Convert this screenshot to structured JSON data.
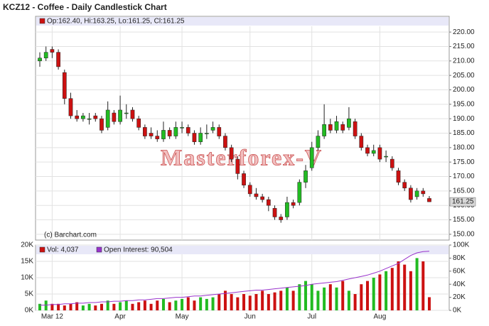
{
  "chart_data": [
    {
      "type": "candlestick",
      "title": "KCZ12 - Coffee - Daily Candlestick Chart",
      "legend": "Op:162.40, Hi:163.25, Lo:161.25, Cl:161.25",
      "watermark": "Masterforex-V",
      "credit": "(c) Barchart.com",
      "up_color": "#22bb22",
      "down_color": "#cc1111",
      "open": [
        210,
        211,
        214,
        213,
        206,
        197,
        191,
        190,
        190,
        191,
        190,
        187,
        192,
        189,
        192,
        193,
        190,
        187,
        185,
        184,
        183,
        186,
        184,
        187,
        187,
        185,
        182,
        185,
        186,
        187,
        184,
        180,
        176,
        171,
        167,
        164,
        163,
        162,
        159,
        156,
        156,
        161,
        161,
        168,
        173,
        180,
        184,
        188,
        186,
        188,
        187,
        189,
        184,
        180,
        178,
        180,
        177,
        176,
        172,
        168,
        166,
        163,
        165,
        162.4
      ],
      "high": [
        213,
        215,
        215,
        214,
        207,
        199,
        193,
        192,
        192,
        192,
        191,
        196,
        193,
        198,
        195,
        194,
        191,
        188,
        187,
        186,
        189,
        187,
        189,
        189,
        188,
        186,
        187,
        188,
        189,
        188,
        185,
        181,
        177,
        172,
        168,
        166,
        164,
        163,
        160,
        157,
        163,
        162,
        169,
        174,
        182,
        186,
        195,
        190,
        191,
        189,
        194,
        190,
        185,
        181,
        181,
        181,
        179,
        177,
        173,
        169,
        167,
        166,
        166,
        163.25
      ],
      "low": [
        208,
        210,
        211,
        207,
        195,
        190,
        189,
        189,
        188,
        189,
        185,
        186,
        188,
        188,
        190,
        189,
        186,
        183,
        183,
        182,
        182,
        183,
        183,
        185,
        184,
        181,
        181,
        183,
        185,
        183,
        179,
        175,
        169,
        166,
        163,
        162,
        161,
        158,
        155,
        154,
        155,
        159,
        160,
        166,
        172,
        179,
        183,
        185,
        185,
        185,
        186,
        183,
        179,
        177,
        177,
        175,
        175,
        172,
        167,
        165,
        161,
        162,
        163,
        161.25
      ],
      "close": [
        211,
        213,
        213,
        208,
        197,
        191,
        190,
        191,
        190,
        190,
        186,
        193,
        189,
        193,
        192,
        190,
        187,
        184,
        184,
        183,
        186,
        184,
        187,
        187,
        185,
        182,
        185,
        185,
        187,
        184,
        180,
        176,
        171,
        167,
        164,
        163,
        162,
        160,
        156,
        155,
        161,
        160,
        168,
        172,
        180,
        184,
        188,
        186,
        189,
        186,
        190,
        184,
        180,
        178,
        179,
        176,
        177,
        173,
        168,
        166,
        162,
        165,
        164,
        161.25
      ],
      "ylim": [
        148,
        222
      ],
      "yticks": [
        {
          "value": 150,
          "label": "150.00"
        },
        {
          "value": 155,
          "label": "155.00"
        },
        {
          "value": 160,
          "label": "160.00"
        },
        {
          "value": 165,
          "label": "165.00"
        },
        {
          "value": 170,
          "label": "170.00"
        },
        {
          "value": 175,
          "label": "175.00"
        },
        {
          "value": 180,
          "label": "180.00"
        },
        {
          "value": 185,
          "label": "185.00"
        },
        {
          "value": 190,
          "label": "190.00"
        },
        {
          "value": 195,
          "label": "195.00"
        },
        {
          "value": 200,
          "label": "200.00"
        },
        {
          "value": 205,
          "label": "205.00"
        },
        {
          "value": 210,
          "label": "210.00"
        },
        {
          "value": 215,
          "label": "215.00"
        },
        {
          "value": 220,
          "label": "220.00"
        }
      ],
      "grid": true
    },
    {
      "type": "bar",
      "categories": [
        null,
        null,
        "Mar 12",
        null,
        null,
        null,
        null,
        null,
        null,
        null,
        null,
        null,
        null,
        "Apr",
        null,
        null,
        null,
        null,
        null,
        null,
        null,
        null,
        null,
        "May",
        null,
        null,
        null,
        null,
        null,
        null,
        null,
        null,
        null,
        null,
        "Jun",
        null,
        null,
        null,
        null,
        null,
        null,
        null,
        null,
        null,
        "Jul",
        null,
        null,
        null,
        null,
        null,
        null,
        null,
        null,
        null,
        null,
        "Aug",
        null,
        null,
        null,
        null,
        null,
        null,
        null,
        null
      ],
      "series": [
        {
          "name": "Vol: 4,037",
          "color": "#cc1111",
          "values": [
            2000,
            3000,
            2000,
            2000,
            1500,
            2000,
            2500,
            1500,
            2000,
            1500,
            2000,
            3000,
            2000,
            2500,
            3000,
            2000,
            2500,
            3000,
            2000,
            3000,
            3500,
            2500,
            3000,
            3500,
            4000,
            3000,
            4000,
            3500,
            4000,
            5000,
            6000,
            5000,
            4000,
            5000,
            4500,
            5000,
            6000,
            5000,
            5500,
            6000,
            7000,
            6000,
            8000,
            9000,
            8000,
            6000,
            7000,
            8000,
            7000,
            9000,
            6000,
            5000,
            8000,
            9000,
            10000,
            11000,
            12000,
            13000,
            15000,
            14000,
            12000,
            16000,
            15000,
            4037
          ]
        },
        {
          "name": "Open Interest: 90,504",
          "color": "#9933cc",
          "axis": "y2",
          "values": [
            8000,
            8000,
            9000,
            9000,
            10000,
            10000,
            11000,
            11000,
            12000,
            12000,
            13000,
            13000,
            14000,
            14000,
            15000,
            15000,
            16000,
            16000,
            17000,
            18000,
            18000,
            19000,
            20000,
            20000,
            21000,
            22000,
            22000,
            23000,
            24000,
            25000,
            26000,
            27000,
            28000,
            29000,
            30000,
            31000,
            31000,
            32000,
            33000,
            34000,
            35000,
            36000,
            37000,
            38000,
            40000,
            41000,
            42000,
            43000,
            44000,
            46000,
            48000,
            50000,
            52000,
            54000,
            57000,
            60000,
            64000,
            68000,
            72000,
            78000,
            84000,
            88000,
            90000,
            90504
          ]
        }
      ],
      "ylim": [
        0,
        20000
      ],
      "yticks": [
        {
          "value": 0,
          "label": "0K"
        },
        {
          "value": 5000,
          "label": "5K"
        },
        {
          "value": 10000,
          "label": "10K"
        },
        {
          "value": 15000,
          "label": "15K"
        },
        {
          "value": 20000,
          "label": "20K"
        }
      ],
      "y2lim": [
        0,
        100000
      ],
      "y2ticks": [
        {
          "value": 0,
          "label": "0K"
        },
        {
          "value": 20000,
          "label": "20K"
        },
        {
          "value": 40000,
          "label": "40K"
        },
        {
          "value": 60000,
          "label": "60K"
        },
        {
          "value": 80000,
          "label": "80K"
        },
        {
          "value": 100000,
          "label": "100K"
        }
      ],
      "grid": true
    }
  ]
}
